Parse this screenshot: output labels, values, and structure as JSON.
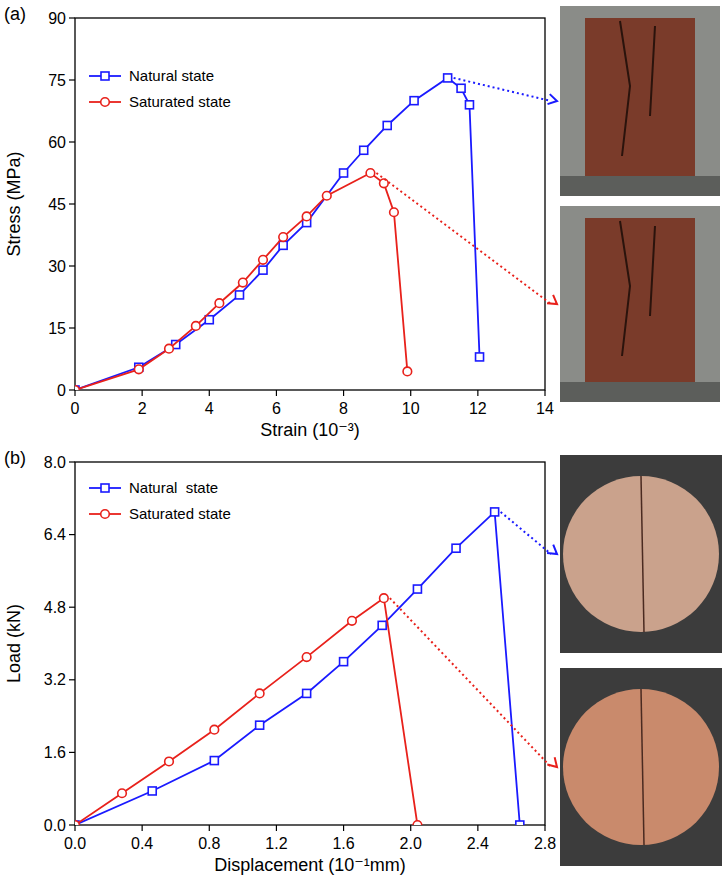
{
  "chart_data": [
    {
      "type": "line",
      "title": "(a)",
      "x_label": "Strain (10⁻³)",
      "y_label": "Stress (MPa)",
      "xlim": [
        0,
        14
      ],
      "xticks": [
        0,
        2,
        4,
        6,
        8,
        10,
        12,
        14
      ],
      "ylim": [
        0,
        90
      ],
      "yticks": [
        0,
        15,
        30,
        45,
        60,
        75,
        90
      ],
      "legend": "upper left",
      "grid": false,
      "series": [
        {
          "name": "Natural state",
          "color": "#1a1aff",
          "marker": "square",
          "x": [
            0,
            1.9,
            3.0,
            4.0,
            4.9,
            5.6,
            6.2,
            6.9,
            8.0,
            8.6,
            9.3,
            10.1,
            11.1,
            11.5,
            11.75,
            12.05
          ],
          "values": [
            0,
            5.5,
            11,
            17,
            23,
            29,
            35,
            40.5,
            52.5,
            58,
            64,
            70,
            75.5,
            73,
            69,
            8
          ]
        },
        {
          "name": "Saturated state",
          "color": "#e8211b",
          "marker": "circle",
          "x": [
            0,
            1.9,
            2.8,
            3.6,
            4.3,
            5.0,
            5.6,
            6.2,
            6.9,
            7.5,
            8.8,
            9.2,
            9.5,
            9.9
          ],
          "values": [
            0,
            5,
            10,
            15.5,
            21,
            26,
            31.5,
            37,
            42,
            47,
            52.5,
            50,
            43,
            4.5
          ]
        }
      ]
    },
    {
      "type": "line",
      "title": "(b)",
      "x_label": "Displacement (10⁻¹mm)",
      "y_label": "Load (kN)",
      "xlim": [
        0,
        2.8
      ],
      "xticks": [
        {
          "value": 0,
          "label": "0.0"
        },
        0.4,
        0.8,
        1.2,
        1.6,
        {
          "value": 2,
          "label": "2.0"
        },
        2.4,
        2.8
      ],
      "ylim": [
        0,
        8
      ],
      "yticks": [
        {
          "value": 0,
          "label": "0.0"
        },
        1.6,
        3.2,
        4.8,
        6.4,
        {
          "value": 8,
          "label": "8.0"
        }
      ],
      "legend": "upper left",
      "grid": false,
      "series": [
        {
          "name": "Natural  state",
          "color": "#1a1aff",
          "marker": "square",
          "x": [
            0,
            0.46,
            0.83,
            1.1,
            1.38,
            1.6,
            1.83,
            2.04,
            2.27,
            2.5,
            2.65
          ],
          "values": [
            0,
            0.75,
            1.42,
            2.2,
            2.9,
            3.6,
            4.4,
            5.2,
            6.1,
            6.9,
            0
          ]
        },
        {
          "name": "Saturated state",
          "color": "#e8211b",
          "marker": "circle",
          "x": [
            0,
            0.28,
            0.56,
            0.83,
            1.1,
            1.38,
            1.65,
            1.84,
            2.04
          ],
          "values": [
            0,
            0.7,
            1.4,
            2.1,
            2.9,
            3.7,
            4.5,
            5.0,
            0
          ]
        }
      ]
    }
  ]
}
